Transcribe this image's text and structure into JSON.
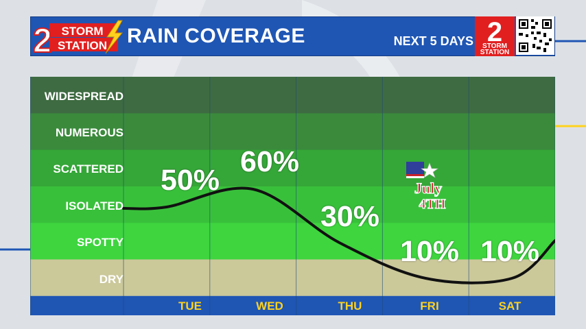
{
  "header": {
    "title": "RAIN COVERAGE",
    "subtitle": "NEXT 5 DAYS",
    "brand_left_number": "2",
    "brand_left_line1": "STORM",
    "brand_left_line2": "STATION",
    "brand_right_number": "2",
    "brand_right_line1": "STORM",
    "brand_right_line2": "STATION"
  },
  "badge": {
    "line1": "July",
    "line2": "4TH"
  },
  "colors": {
    "header_blue": "#1f56b4",
    "day_label_yellow": "#ffd21e",
    "dry_band": "#cbc89a",
    "curve": "#111111"
  },
  "chart_data": {
    "type": "line",
    "categories": [
      "TUE",
      "WED",
      "THU",
      "FRI",
      "SAT"
    ],
    "values": [
      50,
      60,
      30,
      10,
      10
    ],
    "value_labels": [
      "50%",
      "60%",
      "30%",
      "10%",
      "10%"
    ],
    "y_categories": [
      "WIDESPREAD",
      "NUMEROUS",
      "SCATTERED",
      "ISOLATED",
      "SPOTTY",
      "DRY"
    ],
    "title": "RAIN COVERAGE",
    "subtitle": "NEXT 5 DAYS",
    "ylim": [
      0,
      100
    ],
    "legend": "none",
    "grid": true
  }
}
